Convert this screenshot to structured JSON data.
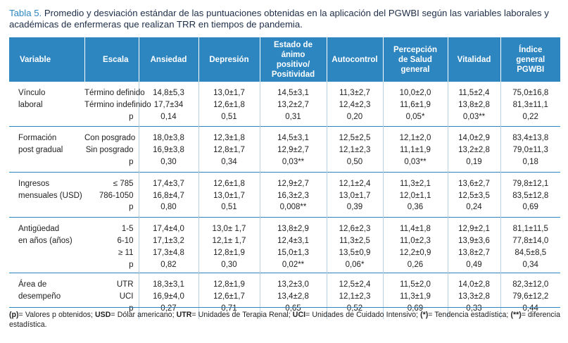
{
  "caption": {
    "label": "Tabla 5.",
    "text": " Promedio y desviación estándar de las puntuaciones obtenidas en la aplicación del PGWBI según las variables laborales y académicas de enfermeras que realizan TRR en tiempos de pandemia."
  },
  "header": {
    "variable": "Variable",
    "escala": "Escala",
    "columns": [
      "Ansiedad",
      "Depresión",
      "Estado de ánimo positivo/ Positividad",
      "Autocontrol",
      "Percepción de Salud general",
      "Vitalidad",
      "Índice general PGWBI"
    ]
  },
  "groups": [
    {
      "variable": [
        "Vínculo",
        "laboral"
      ],
      "scales": [
        "Término definido",
        "Término indefinido",
        "p"
      ],
      "cols": [
        [
          "14,8±5,3",
          "17,7±34",
          "0,14"
        ],
        [
          "13,0±1,7",
          "12,6±1,8",
          "0,51"
        ],
        [
          "14,5±3,1",
          "13,2±2,7",
          "0,31"
        ],
        [
          "11,3±2,7",
          "12,4±2,3",
          "0,20"
        ],
        [
          "10,0±2,0",
          "11,6±1,9",
          "0,05*"
        ],
        [
          "11,5±2,4",
          "13,8±2,8",
          "0,03**"
        ],
        [
          "75,0±16,8",
          "81,3±11,1",
          "0,22"
        ]
      ]
    },
    {
      "variable": [
        "Formación",
        "post gradual"
      ],
      "scales": [
        "Con posgrado",
        "Sin posgrado",
        "p"
      ],
      "cols": [
        [
          "18,0±3,8",
          "16,9±3,8",
          "0,30"
        ],
        [
          "12,3±1,8",
          "12,8±1,7",
          "0,34"
        ],
        [
          "14,5±3,1",
          "12,9±2,7",
          "0,03**"
        ],
        [
          "12,5±2,5",
          "12,1±2,3",
          "0,50"
        ],
        [
          "12,1±2,0",
          "11,1±1,9",
          "0,03**"
        ],
        [
          "14,0±2,9",
          "13,2±2,8",
          "0,19"
        ],
        [
          "83,4±13,8",
          "79,0±11,3",
          "0,18"
        ]
      ]
    },
    {
      "variable": [
        "Ingresos",
        "mensuales (USD)"
      ],
      "scales": [
        "≤ 785",
        "786-1050",
        "p"
      ],
      "cols": [
        [
          "17,4±3,7",
          "16,8±4,7",
          "0,80"
        ],
        [
          "12,6±1,8",
          "13,0±1,7",
          "0,51"
        ],
        [
          "12,9±2,7",
          "16,3±2,3",
          "0,008**"
        ],
        [
          "12,1±2,4",
          "13,0±1,7",
          "0,39"
        ],
        [
          "11,3±2,1",
          "12,0±1,1",
          "0,36"
        ],
        [
          "13,6±2,7",
          "12,5±3,5",
          "0,24"
        ],
        [
          "79,8±12,1",
          "83,5±12,8",
          "0,69"
        ]
      ]
    },
    {
      "variable": [
        "Antigüedad",
        "en años (años)"
      ],
      "scales": [
        "1-5",
        "6-10",
        "≥ 11",
        "p"
      ],
      "cols": [
        [
          "17,4±4,0",
          "17,1±3,2",
          "17,3±4,8",
          "0,82"
        ],
        [
          "13,0± 1,7",
          "12,1± 1,7",
          "12,8±1,9",
          "0,30"
        ],
        [
          "13,8±2,9",
          "12,4±3,1",
          "15,0±1,3",
          "0,02**"
        ],
        [
          "12,6±2,3",
          "11,3±2,5",
          "13,5±0,9",
          "0,06*"
        ],
        [
          "11,4±1,8",
          "11,0±2,3",
          "12,2±0,9",
          "0,26"
        ],
        [
          "12,9±2,1",
          "13,9±3,6",
          "13,8±2,7",
          "0,49"
        ],
        [
          "81,1±11,5",
          "77,8±14,0",
          "84,5±8,5",
          "0,34"
        ]
      ]
    },
    {
      "variable": [
        "Área de",
        "desempeño"
      ],
      "scales": [
        "UTR",
        "UCI",
        "p"
      ],
      "cols": [
        [
          "18,3±3,1",
          "16,9±4,0",
          "0,27"
        ],
        [
          "12,8±1,9",
          "12,6±1,7",
          "0,71"
        ],
        [
          "13,2±3,0",
          "13,4±2,8",
          "0,65"
        ],
        [
          "12,5±2,4",
          "12,1±2,3",
          "0,52"
        ],
        [
          "11,5±2,0",
          "11,3±1,9",
          "0,69"
        ],
        [
          "14,0±2,8",
          "13,3±2,8",
          "0,33"
        ],
        [
          "82,3±12,0",
          "79,6±12,2",
          "0,44"
        ]
      ]
    }
  ],
  "note": {
    "segments": [
      {
        "b": "(p)",
        "t": "= Valores p obtenidos; "
      },
      {
        "b": "USD",
        "t": "= Dólar americano; "
      },
      {
        "b": "UTR",
        "t": "= Unidades de Terapia Renal; "
      },
      {
        "b": "UCI",
        "t": "= Unidades de Cuidado Intensivo; "
      },
      {
        "b": "(*)",
        "t": "= Tendencia estadística; "
      },
      {
        "b": "(**)",
        "t": "= diferencia estadística."
      }
    ]
  }
}
